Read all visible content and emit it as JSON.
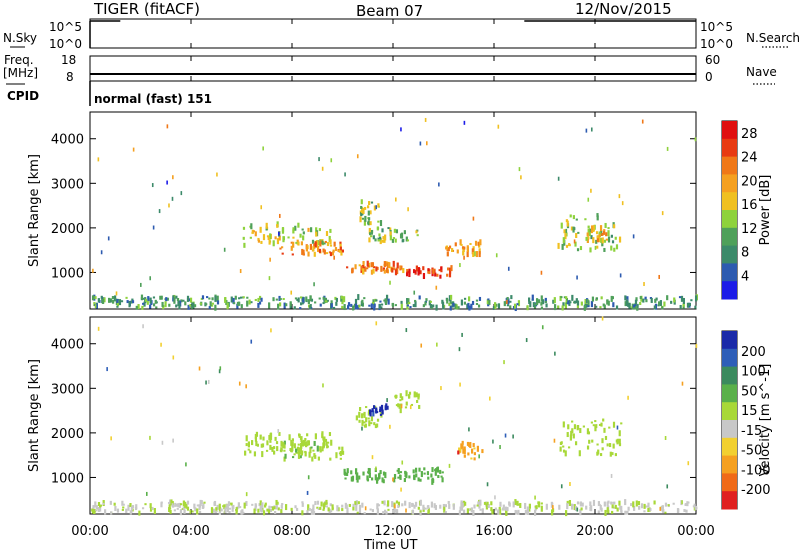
{
  "header": {
    "radar": "TIGER (fitACF)",
    "beam": "Beam 07",
    "date": "12/Nov/2015"
  },
  "side_labels": {
    "nsky": "N.Sky",
    "freq_1": "Freq.",
    "freq_2": "[MHz]",
    "cpid": "CPID",
    "nsearch": "N.Search",
    "nave": "Nave",
    "nsky_top": "10^5",
    "nsky_bottom": "10^0",
    "nsearch_top": "10^5",
    "nsearch_bottom": "10^0",
    "freq_top": "18",
    "freq_bottom": "8",
    "nave_top": "60",
    "nave_bottom": "0"
  },
  "cpid_text": "normal (fast) 151",
  "x_axis": {
    "label": "Time UT",
    "ticks": [
      "00:00",
      "04:00",
      "08:00",
      "12:00",
      "16:00",
      "20:00",
      "00:00"
    ]
  },
  "colors": {
    "power": [
      "#1c1ce8",
      "#2d5bb0",
      "#3c8a6a",
      "#4fa05a",
      "#8ed23c",
      "#f0c020",
      "#f5a020",
      "#f07818",
      "#e83a12",
      "#e01010"
    ],
    "velocity": [
      "#1a2aa8",
      "#2e5eb8",
      "#3b8a5e",
      "#5ab04a",
      "#a8d838",
      "#c8c8c8",
      "#f2d030",
      "#f5a020",
      "#f06a18",
      "#e02020"
    ]
  },
  "chart_data": [
    {
      "type": "heatmap",
      "title": "Power",
      "xlabel": "Time UT",
      "ylabel": "Slant Range [km]",
      "xlim": [
        0,
        24
      ],
      "ylim": [
        180,
        4600
      ],
      "yticks": [
        "1000",
        "2000",
        "3000",
        "4000"
      ],
      "colorbar": {
        "label": "Power [dB]",
        "ticks": [
          "4",
          "8",
          "12",
          "16",
          "20",
          "24",
          "28"
        ],
        "range": [
          0,
          30
        ]
      },
      "regions": [
        {
          "t": [
            6.0,
            9.5
          ],
          "r": [
            1600,
            2100
          ],
          "value": 14
        },
        {
          "t": [
            7.5,
            10.0
          ],
          "r": [
            1400,
            1700
          ],
          "value": 20
        },
        {
          "t": [
            10.0,
            12.5
          ],
          "r": [
            1000,
            1200
          ],
          "value": 22
        },
        {
          "t": [
            12.5,
            14.3
          ],
          "r": [
            900,
            1100
          ],
          "value": 26
        },
        {
          "t": [
            10.5,
            11.5
          ],
          "r": [
            2100,
            2600
          ],
          "value": 13
        },
        {
          "t": [
            11.0,
            13.0
          ],
          "r": [
            1700,
            2000
          ],
          "value": 12
        },
        {
          "t": [
            14.0,
            15.5
          ],
          "r": [
            1400,
            1700
          ],
          "value": 19
        },
        {
          "t": [
            18.5,
            21.0
          ],
          "r": [
            1500,
            2300
          ],
          "value": 13
        },
        {
          "t": [
            19.5,
            20.5
          ],
          "r": [
            1700,
            2000
          ],
          "value": 18
        },
        {
          "t": [
            0.0,
            24.0
          ],
          "r": [
            200,
            450
          ],
          "value": 9
        }
      ]
    },
    {
      "type": "heatmap",
      "title": "Velocity",
      "xlabel": "Time UT",
      "ylabel": "Slant Range [km]",
      "xlim": [
        0,
        24
      ],
      "ylim": [
        180,
        4600
      ],
      "yticks": [
        "1000",
        "2000",
        "3000",
        "4000"
      ],
      "colorbar": {
        "label": "Velocity [m s^-1]",
        "ticks": [
          "200",
          "100",
          "50",
          "15",
          "-15",
          "-50",
          "-100",
          "-200"
        ]
      },
      "regions": [
        {
          "t": [
            6.0,
            9.5
          ],
          "r": [
            1500,
            2000
          ],
          "value": 0
        },
        {
          "t": [
            7.5,
            10.0
          ],
          "r": [
            1400,
            1800
          ],
          "value": 5
        },
        {
          "t": [
            10.0,
            14.0
          ],
          "r": [
            900,
            1200
          ],
          "value": 30
        },
        {
          "t": [
            10.5,
            11.5
          ],
          "r": [
            2100,
            2600
          ],
          "value": 0
        },
        {
          "t": [
            11.0,
            11.8
          ],
          "r": [
            2400,
            2600
          ],
          "value": 250
        },
        {
          "t": [
            12.0,
            13.0
          ],
          "r": [
            2500,
            2900
          ],
          "value": 0
        },
        {
          "t": [
            14.5,
            15.5
          ],
          "r": [
            1400,
            1800
          ],
          "value": -150
        },
        {
          "t": [
            18.5,
            21.0
          ],
          "r": [
            1500,
            2300
          ],
          "value": 0
        },
        {
          "t": [
            0.0,
            24.0
          ],
          "r": [
            200,
            450
          ],
          "value": -20
        }
      ]
    }
  ]
}
